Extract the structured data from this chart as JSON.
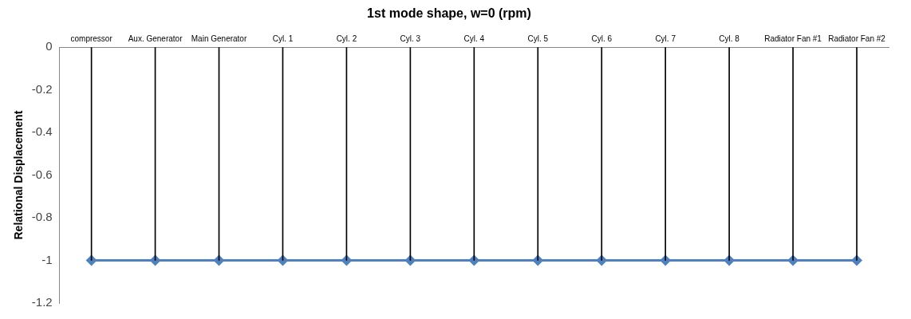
{
  "chart_data": {
    "type": "line",
    "title": "1st mode shape, w=0 (rpm)",
    "ylabel": "Relational Displacement",
    "categories": [
      "compressor",
      "Aux. Generator",
      "Main Generator",
      "Cyl. 1",
      "Cyl. 2",
      "Cyl. 3",
      "Cyl. 4",
      "Cyl. 5",
      "Cyl. 6",
      "Cyl. 7",
      "Cyl. 8",
      "Radiator Fan #1",
      "Radiator Fan #2"
    ],
    "series": [
      {
        "color": "#4f81bd",
        "values": [
          -1,
          -1,
          -1,
          -1,
          -1,
          -1,
          -1,
          -1,
          -1,
          -1,
          -1,
          -1,
          -1
        ]
      },
      {
        "type": "bar",
        "color": "#000000",
        "values": [
          -1,
          -1,
          -1,
          -1,
          -1,
          -1,
          -1,
          -1,
          -1,
          -1,
          -1,
          -1,
          -1
        ]
      }
    ],
    "ylim": [
      -1.2,
      0
    ],
    "yticks": [
      0,
      -0.2,
      -0.4,
      -0.6,
      -0.8,
      -1,
      -1.2
    ],
    "grid": false,
    "legend": false,
    "marker": "diamond",
    "line_style": "solid"
  }
}
